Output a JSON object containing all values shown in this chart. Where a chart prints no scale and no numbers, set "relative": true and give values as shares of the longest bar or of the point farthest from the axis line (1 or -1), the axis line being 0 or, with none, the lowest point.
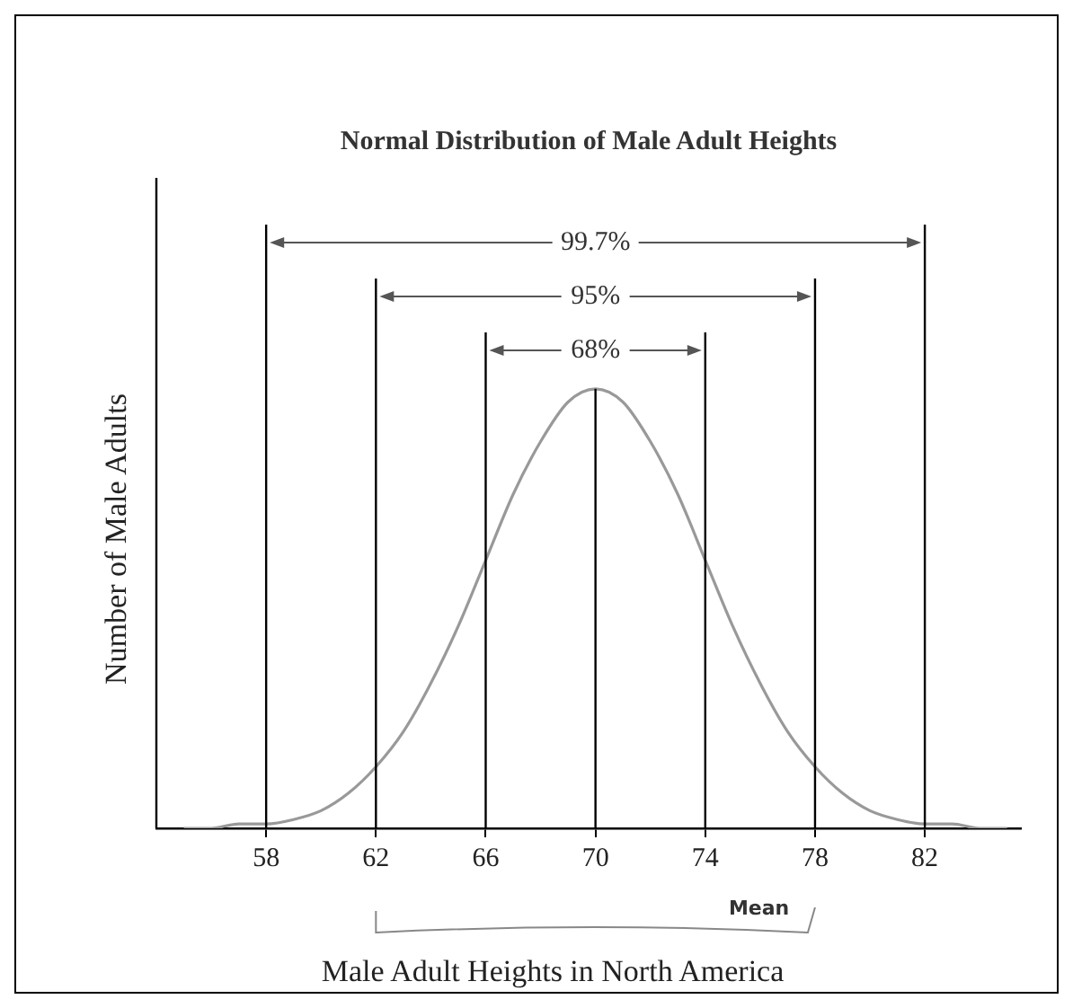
{
  "chart_data": {
    "type": "line",
    "title": "Normal Distribution of Male Adult Heights",
    "xlabel": "Male Adult Heights in North America",
    "ylabel": "Number of Male Adults",
    "relative": true,
    "x": [
      55,
      56,
      57,
      58,
      59,
      60,
      61,
      62,
      63,
      64,
      65,
      66,
      67,
      68,
      69,
      70,
      71,
      72,
      73,
      74,
      75,
      76,
      77,
      78,
      79,
      80,
      81,
      82,
      83,
      84,
      85
    ],
    "series": [
      {
        "color": "#999999",
        "values": [
          0.0,
          0.0,
          0.01,
          0.01,
          0.02,
          0.04,
          0.08,
          0.14,
          0.22,
          0.33,
          0.46,
          0.61,
          0.76,
          0.88,
          0.97,
          1,
          0.97,
          0.88,
          0.76,
          0.61,
          0.46,
          0.33,
          0.22,
          0.14,
          0.08,
          0.04,
          0.02,
          0.01,
          0.01,
          0.0,
          0.0
        ]
      }
    ],
    "xlim": [
      54,
      85.5
    ],
    "xticks": [
      58,
      62,
      66,
      70,
      74,
      78,
      82
    ],
    "grid": false,
    "legend": false,
    "marker": "none",
    "line_style": "solid",
    "ref_lines": [
      {
        "axis": "x",
        "value": 58,
        "color": "#000000"
      },
      {
        "axis": "x",
        "value": 62,
        "color": "#000000"
      },
      {
        "axis": "x",
        "value": 66,
        "color": "#000000"
      },
      {
        "axis": "x",
        "value": 70,
        "color": "#000000"
      },
      {
        "axis": "x",
        "value": 74,
        "color": "#000000"
      },
      {
        "axis": "x",
        "value": 78,
        "color": "#000000"
      },
      {
        "axis": "x",
        "value": 82,
        "color": "#000000"
      }
    ],
    "annotations": [
      "99.7%",
      "95%",
      "68%",
      "Mean"
    ]
  }
}
